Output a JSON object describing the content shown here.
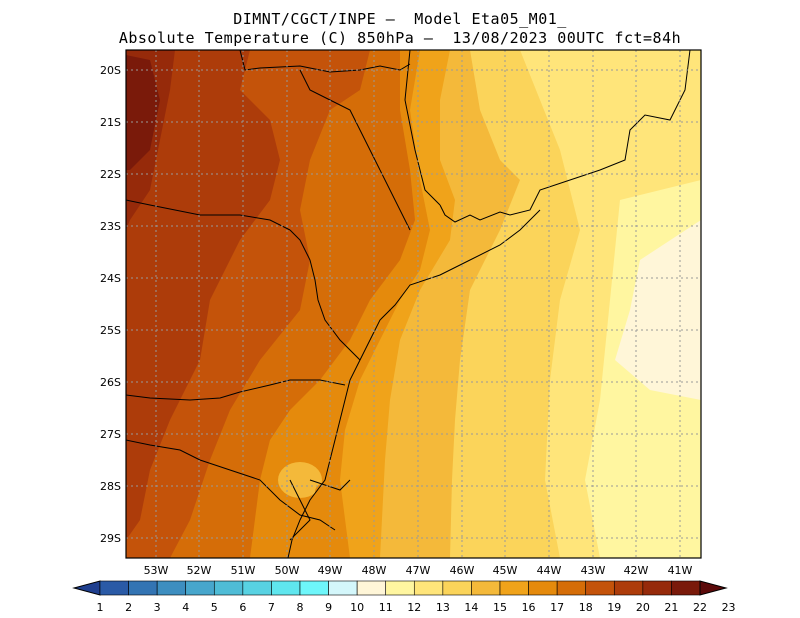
{
  "title": {
    "line1": "DIMNT/CGCT/INPE –  Model Eta05_M01_",
    "line2": "Absolute Temperature (C) 850hPa –  13/08/2023 00UTC fct=84h"
  },
  "map": {
    "lat_labels": [
      "20S",
      "21S",
      "22S",
      "23S",
      "24S",
      "25S",
      "26S",
      "27S",
      "28S",
      "29S"
    ],
    "lon_labels": [
      "53W",
      "52W",
      "51W",
      "50W",
      "49W",
      "48W",
      "47W",
      "46W",
      "45W",
      "44W",
      "43W",
      "42W",
      "41W"
    ],
    "grid": "dotted",
    "field": "Absolute Temperature (C) 850hPa"
  },
  "colorbar": {
    "labels": [
      "1",
      "2",
      "3",
      "4",
      "5",
      "6",
      "7",
      "8",
      "9",
      "10",
      "11",
      "12",
      "13",
      "14",
      "15",
      "16",
      "17",
      "18",
      "19",
      "20",
      "21",
      "22",
      "23"
    ],
    "colors": [
      "#1f3f8f",
      "#2a5aa6",
      "#3374b3",
      "#3d8ec0",
      "#47a6cc",
      "#4fbcd6",
      "#58d2e2",
      "#5fe6ee",
      "#6ef6fa",
      "#d4f7fb",
      "#fff6d8",
      "#fff6a0",
      "#ffe57a",
      "#fbd45a",
      "#f4b93a",
      "#f0a31a",
      "#e58a0c",
      "#d56d08",
      "#c4530a",
      "#ad3c0a",
      "#962a0a",
      "#7a1a0a",
      "#5c0a0a"
    ]
  }
}
